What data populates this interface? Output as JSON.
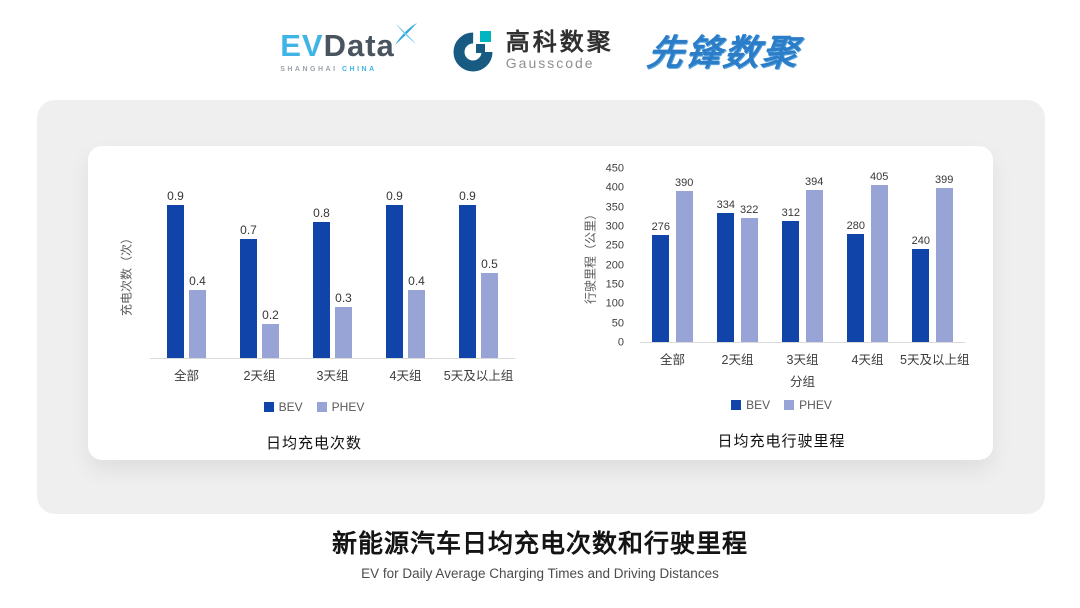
{
  "header": {
    "evdata": {
      "ev": "EV",
      "data": "Data",
      "tagline_left": "SHANGHAI",
      "tagline_right": "CHINA"
    },
    "gausscode": {
      "name_cn": "高科数聚",
      "name_en": "Gausscode"
    },
    "pioneer": {
      "name": "先锋数聚"
    }
  },
  "colors": {
    "bev": "#1144a8",
    "phev": "#98a3d6",
    "evdata_blue": "#41b4e6",
    "evdata_dark": "#4a545e",
    "gausscode_dark": "#175a82",
    "gausscode_teal": "#00b5c0",
    "pioneer_blue": "#2b7dc8",
    "panel_gray": "#efefef",
    "axis_line": "#d9d9d9"
  },
  "chart_data": [
    {
      "type": "bar",
      "title": "日均充电次数",
      "ylabel": "充电次数（次）",
      "xlabel": "",
      "categories": [
        "全部",
        "2天组",
        "3天组",
        "4天组",
        "5天及以上组"
      ],
      "series": [
        {
          "name": "BEV",
          "color": "#1144a8",
          "values": [
            0.9,
            0.7,
            0.8,
            0.9,
            0.9
          ]
        },
        {
          "name": "PHEV",
          "color": "#98a3d6",
          "values": [
            0.4,
            0.2,
            0.3,
            0.4,
            0.5
          ]
        }
      ],
      "ylim": [
        0,
        1.0
      ],
      "yticks": null,
      "grid": false,
      "legend_position": "bottom",
      "value_labels": true
    },
    {
      "type": "bar",
      "title": "日均充电行驶里程",
      "ylabel": "行驶里程（公里）",
      "xlabel": "分组",
      "categories": [
        "全部",
        "2天组",
        "3天组",
        "4天组",
        "5天及以上组"
      ],
      "series": [
        {
          "name": "BEV",
          "color": "#1144a8",
          "values": [
            276,
            334,
            312,
            280,
            240
          ]
        },
        {
          "name": "PHEV",
          "color": "#98a3d6",
          "values": [
            390,
            322,
            394,
            405,
            399
          ]
        }
      ],
      "ylim": [
        0,
        450
      ],
      "yticks": [
        0,
        50,
        100,
        150,
        200,
        250,
        300,
        350,
        400,
        450
      ],
      "grid": false,
      "legend_position": "bottom",
      "value_labels": true
    }
  ],
  "footer": {
    "title": "新能源汽车日均充电次数和行驶里程",
    "subtitle": "EV for Daily Average Charging Times and Driving Distances"
  }
}
